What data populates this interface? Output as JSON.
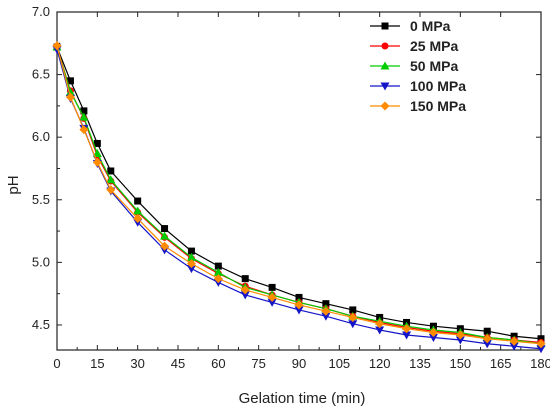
{
  "chart_data": {
    "type": "line",
    "title": "",
    "xlabel": "Gelation time (min)",
    "ylabel": "pH",
    "xlim": [
      0,
      180
    ],
    "ylim": [
      4.3,
      7.0
    ],
    "x_ticks": [
      0,
      15,
      30,
      45,
      60,
      75,
      90,
      105,
      120,
      135,
      150,
      165,
      180
    ],
    "y_ticks": [
      4.5,
      5.0,
      5.5,
      6.0,
      6.5,
      7.0
    ],
    "x_tick_labels": [
      "0",
      "15",
      "30",
      "45",
      "60",
      "75",
      "90",
      "105",
      "120",
      "135",
      "150",
      "165",
      "180"
    ],
    "y_tick_labels": [
      "4.5",
      "5.0",
      "5.5",
      "6.0",
      "6.5",
      "7.0"
    ],
    "grid": false,
    "legend_position": "top-right",
    "x": [
      0,
      5,
      10,
      15,
      20,
      30,
      40,
      50,
      60,
      70,
      80,
      90,
      100,
      110,
      120,
      130,
      140,
      150,
      160,
      170,
      180
    ],
    "series": [
      {
        "name": "0 MPa",
        "color": "#000000",
        "marker": "square",
        "values": [
          6.72,
          6.45,
          6.21,
          5.95,
          5.73,
          5.49,
          5.27,
          5.09,
          4.97,
          4.87,
          4.8,
          4.72,
          4.67,
          4.62,
          4.56,
          4.52,
          4.49,
          4.47,
          4.45,
          4.41,
          4.39
        ]
      },
      {
        "name": "25 MPa",
        "color": "#ff0000",
        "marker": "circle",
        "values": [
          6.72,
          6.37,
          6.15,
          5.85,
          5.65,
          5.4,
          5.2,
          5.03,
          4.91,
          4.81,
          4.74,
          4.68,
          4.63,
          4.57,
          4.52,
          4.48,
          4.45,
          4.43,
          4.4,
          4.38,
          4.36
        ]
      },
      {
        "name": "50 MPa",
        "color": "#00cc00",
        "marker": "triangle-up",
        "values": [
          6.72,
          6.36,
          6.16,
          5.87,
          5.66,
          5.41,
          5.21,
          5.04,
          4.92,
          4.8,
          4.74,
          4.68,
          4.63,
          4.57,
          4.53,
          4.49,
          4.46,
          4.44,
          4.4,
          4.38,
          4.35
        ]
      },
      {
        "name": "100 MPa",
        "color": "#1515c8",
        "marker": "triangle-down",
        "values": [
          6.7,
          6.31,
          6.07,
          5.79,
          5.57,
          5.32,
          5.1,
          4.95,
          4.84,
          4.74,
          4.68,
          4.62,
          4.57,
          4.51,
          4.46,
          4.42,
          4.4,
          4.38,
          4.35,
          4.33,
          4.31
        ]
      },
      {
        "name": "150 MPa",
        "color": "#ff8c00",
        "marker": "diamond",
        "values": [
          6.73,
          6.32,
          6.06,
          5.8,
          5.58,
          5.35,
          5.13,
          4.99,
          4.87,
          4.78,
          4.72,
          4.66,
          4.61,
          4.56,
          4.51,
          4.47,
          4.44,
          4.42,
          4.39,
          4.37,
          4.35
        ]
      }
    ]
  }
}
